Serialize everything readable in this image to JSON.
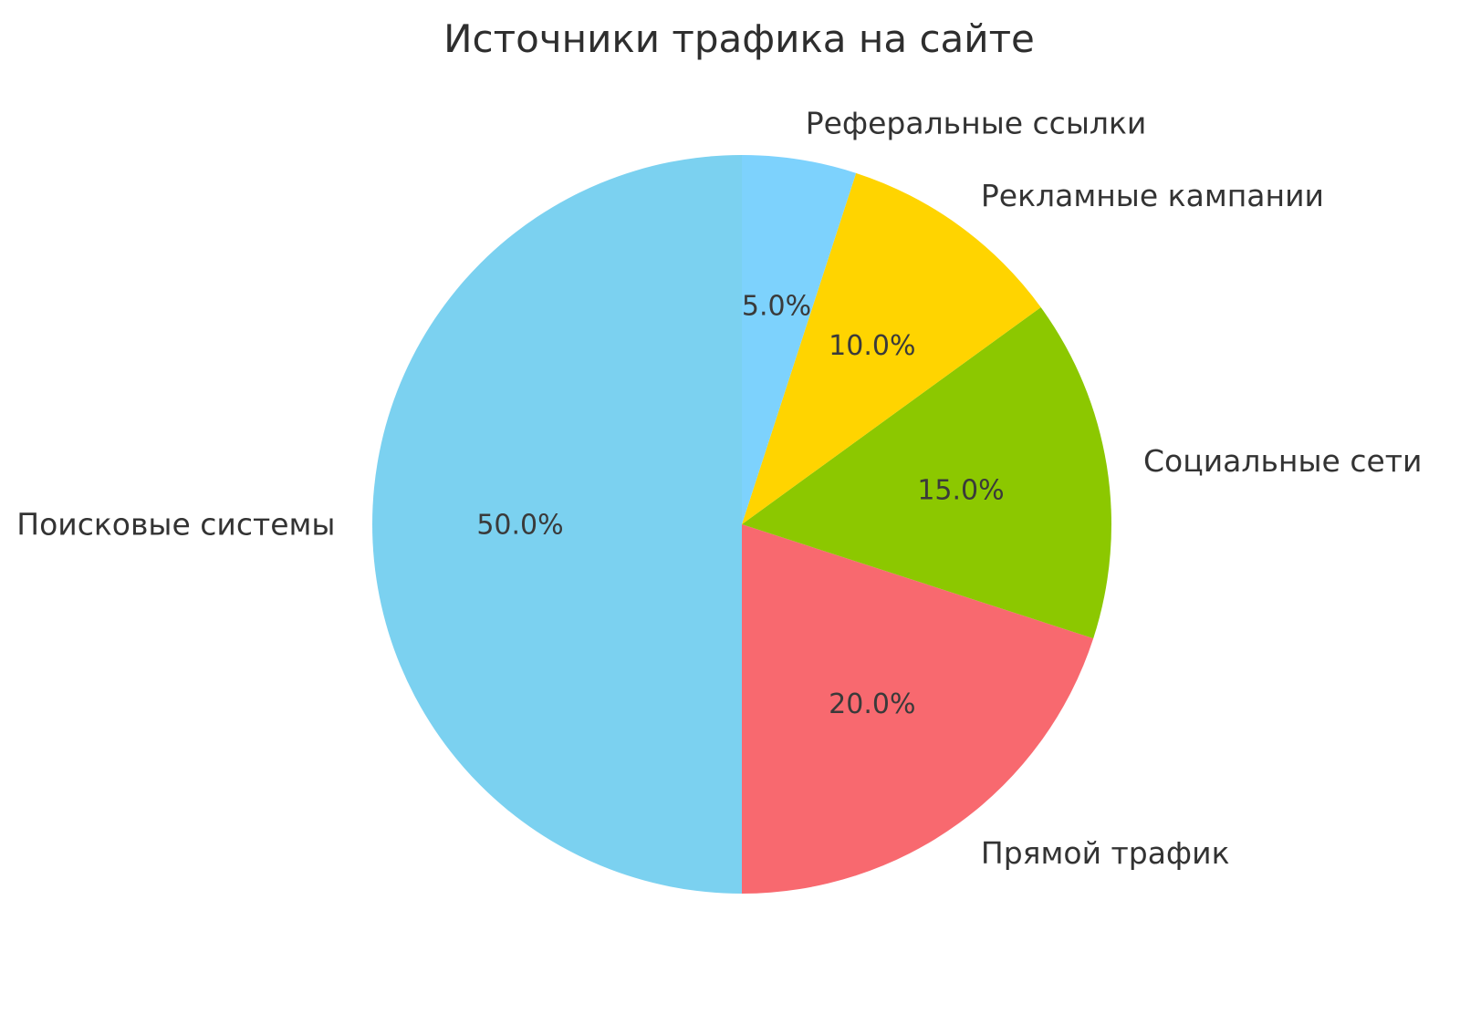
{
  "chart_data": {
    "type": "pie",
    "title": "Источники трафика на сайте",
    "start_angle": 90,
    "counterclock": true,
    "background": "#ffffff",
    "text_color": "#333333",
    "slices": [
      {
        "label": "Поисковые системы",
        "value": 50.0,
        "percent_label": "50.0%",
        "color": "#7BD1F0"
      },
      {
        "label": "Прямой трафик",
        "value": 20.0,
        "percent_label": "20.0%",
        "color": "#F8696F"
      },
      {
        "label": "Социальные сети",
        "value": 15.0,
        "percent_label": "15.0%",
        "color": "#8CC800"
      },
      {
        "label": "Рекламные кампании",
        "value": 10.0,
        "percent_label": "10.0%",
        "color": "#FFD400"
      },
      {
        "label": "Реферальные ссылки",
        "value": 5.0,
        "percent_label": "5.0%",
        "color": "#7DD2FD"
      }
    ]
  }
}
